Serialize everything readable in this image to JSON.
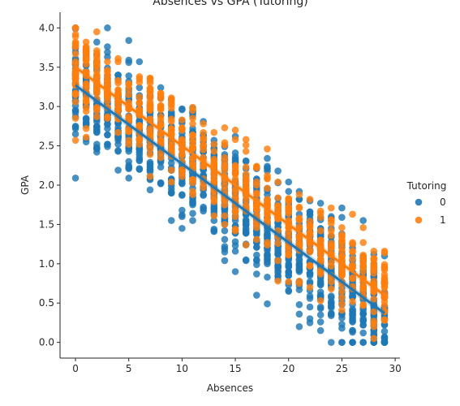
{
  "chart_data": {
    "type": "scatter",
    "title": "Absences vs GPA (Tutoring)",
    "xlabel": "Absences",
    "ylabel": "GPA",
    "xlim": [
      -1.45,
      30.45
    ],
    "ylim": [
      -0.2,
      4.2
    ],
    "xticks": [
      "0",
      "5",
      "10",
      "15",
      "20",
      "25",
      "30"
    ],
    "yticks": [
      "0.0",
      "0.5",
      "1.0",
      "1.5",
      "2.0",
      "2.5",
      "3.0",
      "3.5",
      "4.0"
    ],
    "legend": {
      "title": "Tutoring",
      "placement": "right"
    },
    "series": [
      {
        "name": "0",
        "color": "#1f77b4",
        "absences_range": [
          0,
          29
        ],
        "regression": {
          "intercept": 3.27,
          "slope": -0.1
        },
        "noise_sd": 0.34,
        "n": 1300
      },
      {
        "name": "1",
        "color": "#ff7f0e",
        "absences_range": [
          0,
          29
        ],
        "regression": {
          "intercept": 3.5,
          "slope": -0.1
        },
        "noise_sd": 0.28,
        "n": 700
      }
    ]
  }
}
